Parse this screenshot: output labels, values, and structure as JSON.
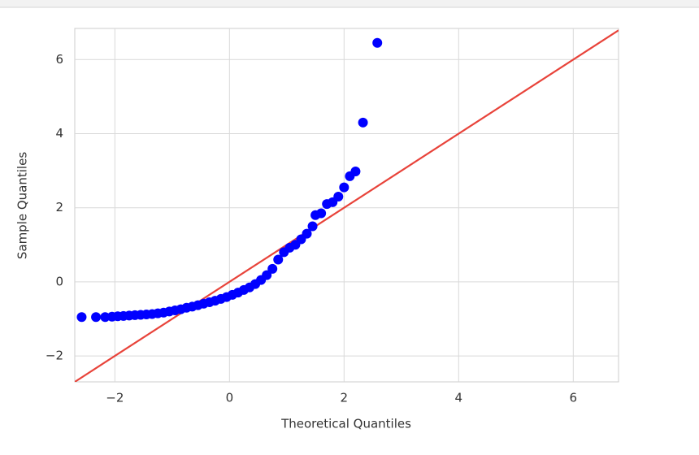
{
  "chart_data": {
    "type": "scatter",
    "xlabel": "Theoretical Quantiles",
    "ylabel": "Sample Quantiles",
    "xlim": [
      -2.7,
      6.79
    ],
    "ylim": [
      -2.7,
      6.84
    ],
    "xticks": [
      {
        "value": -2,
        "label": "−2"
      },
      0,
      2,
      4,
      6
    ],
    "yticks": [
      {
        "value": -2,
        "label": "−2"
      },
      0,
      2,
      4,
      6
    ],
    "grid": true,
    "points": {
      "color": "#0000ff",
      "x": [
        -2.58,
        -2.33,
        -2.17,
        -2.05,
        -1.95,
        -1.85,
        -1.75,
        -1.65,
        -1.55,
        -1.45,
        -1.35,
        -1.25,
        -1.15,
        -1.05,
        -0.95,
        -0.85,
        -0.75,
        -0.65,
        -0.55,
        -0.45,
        -0.35,
        -0.25,
        -0.15,
        -0.05,
        0.05,
        0.15,
        0.25,
        0.35,
        0.45,
        0.55,
        0.65,
        0.75,
        0.85,
        0.95,
        1.05,
        1.15,
        1.25,
        1.35,
        1.45,
        1.5,
        1.6,
        1.7,
        1.8,
        1.9,
        2.0,
        2.1,
        2.2,
        2.33,
        2.58
      ],
      "y": [
        -0.95,
        -0.95,
        -0.95,
        -0.94,
        -0.93,
        -0.92,
        -0.91,
        -0.9,
        -0.89,
        -0.88,
        -0.87,
        -0.85,
        -0.83,
        -0.8,
        -0.77,
        -0.74,
        -0.7,
        -0.67,
        -0.63,
        -0.59,
        -0.55,
        -0.51,
        -0.46,
        -0.41,
        -0.35,
        -0.29,
        -0.22,
        -0.15,
        -0.06,
        0.05,
        0.18,
        0.35,
        0.6,
        0.8,
        0.92,
        1.0,
        1.15,
        1.3,
        1.5,
        1.8,
        1.85,
        2.1,
        2.15,
        2.3,
        2.55,
        2.85,
        2.98,
        4.3,
        6.45
      ]
    },
    "reference_line": {
      "color": "#e8433a",
      "x": [
        -2.7,
        6.79
      ],
      "y": [
        -2.7,
        6.79
      ]
    }
  }
}
